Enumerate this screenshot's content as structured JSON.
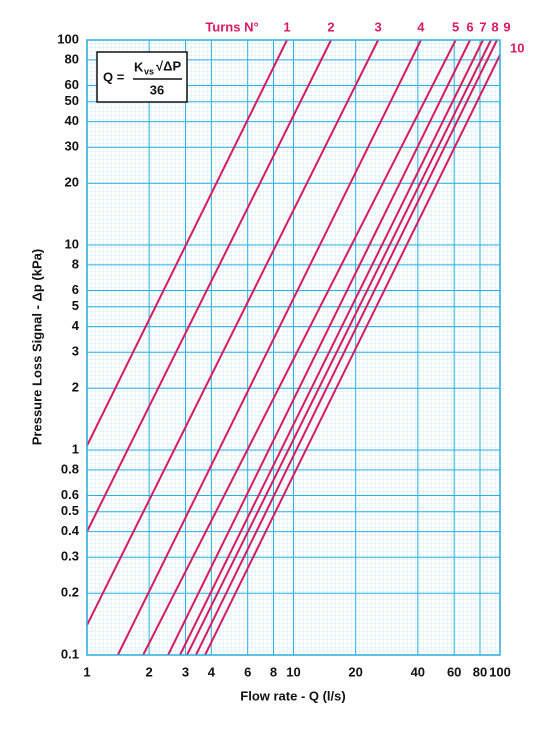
{
  "chart_data": {
    "type": "line",
    "legend_title": "Turns N°",
    "xlabel": "Flow rate - Q (l/s)",
    "ylabel": "Pressure Loss Signal  - Δp (kPa)",
    "formula": {
      "lhs": "Q =",
      "k": "K",
      "sub": "vs",
      "root": "√ΔP",
      "denominator": "36"
    },
    "xscale": "log",
    "yscale": "log",
    "grid": true,
    "xlim": [
      1,
      100
    ],
    "ylim": [
      0.1,
      100
    ],
    "xticks": [
      1,
      2,
      3,
      4,
      6,
      8,
      10,
      20,
      40,
      60,
      80,
      100
    ],
    "yticks": [
      0.1,
      0.2,
      0.3,
      0.4,
      0.5,
      0.6,
      0.8,
      1,
      2,
      3,
      4,
      5,
      6,
      8,
      10,
      20,
      30,
      40,
      50,
      60,
      80,
      100
    ],
    "series": [
      {
        "name": "1",
        "color": "#d81b60",
        "x": [
          1,
          9.3
        ],
        "values": [
          1.05,
          100
        ]
      },
      {
        "name": "2",
        "color": "#d81b60",
        "x": [
          1,
          15.2
        ],
        "values": [
          0.4,
          100
        ]
      },
      {
        "name": "3",
        "color": "#d81b60",
        "x": [
          1,
          25.7
        ],
        "values": [
          0.14,
          100
        ]
      },
      {
        "name": "4",
        "color": "#d81b60",
        "x": [
          1.41,
          41.4
        ],
        "values": [
          0.1,
          100
        ]
      },
      {
        "name": "5",
        "color": "#d81b60",
        "x": [
          1.87,
          61
        ],
        "values": [
          0.1,
          100
        ]
      },
      {
        "name": "6",
        "color": "#d81b60",
        "x": [
          2.47,
          71.6
        ],
        "values": [
          0.1,
          100
        ]
      },
      {
        "name": "7",
        "color": "#d81b60",
        "x": [
          2.82,
          82.7
        ],
        "values": [
          0.1,
          100
        ]
      },
      {
        "name": "8",
        "color": "#d81b60",
        "x": [
          3.05,
          90.4
        ],
        "values": [
          0.1,
          100
        ]
      },
      {
        "name": "9",
        "color": "#d81b60",
        "x": [
          3.37,
          96.7
        ],
        "values": [
          0.1,
          100
        ]
      },
      {
        "name": "10",
        "color": "#d81b60",
        "x": [
          3.73,
          100
        ],
        "values": [
          0.1,
          84.5
        ]
      }
    ]
  }
}
